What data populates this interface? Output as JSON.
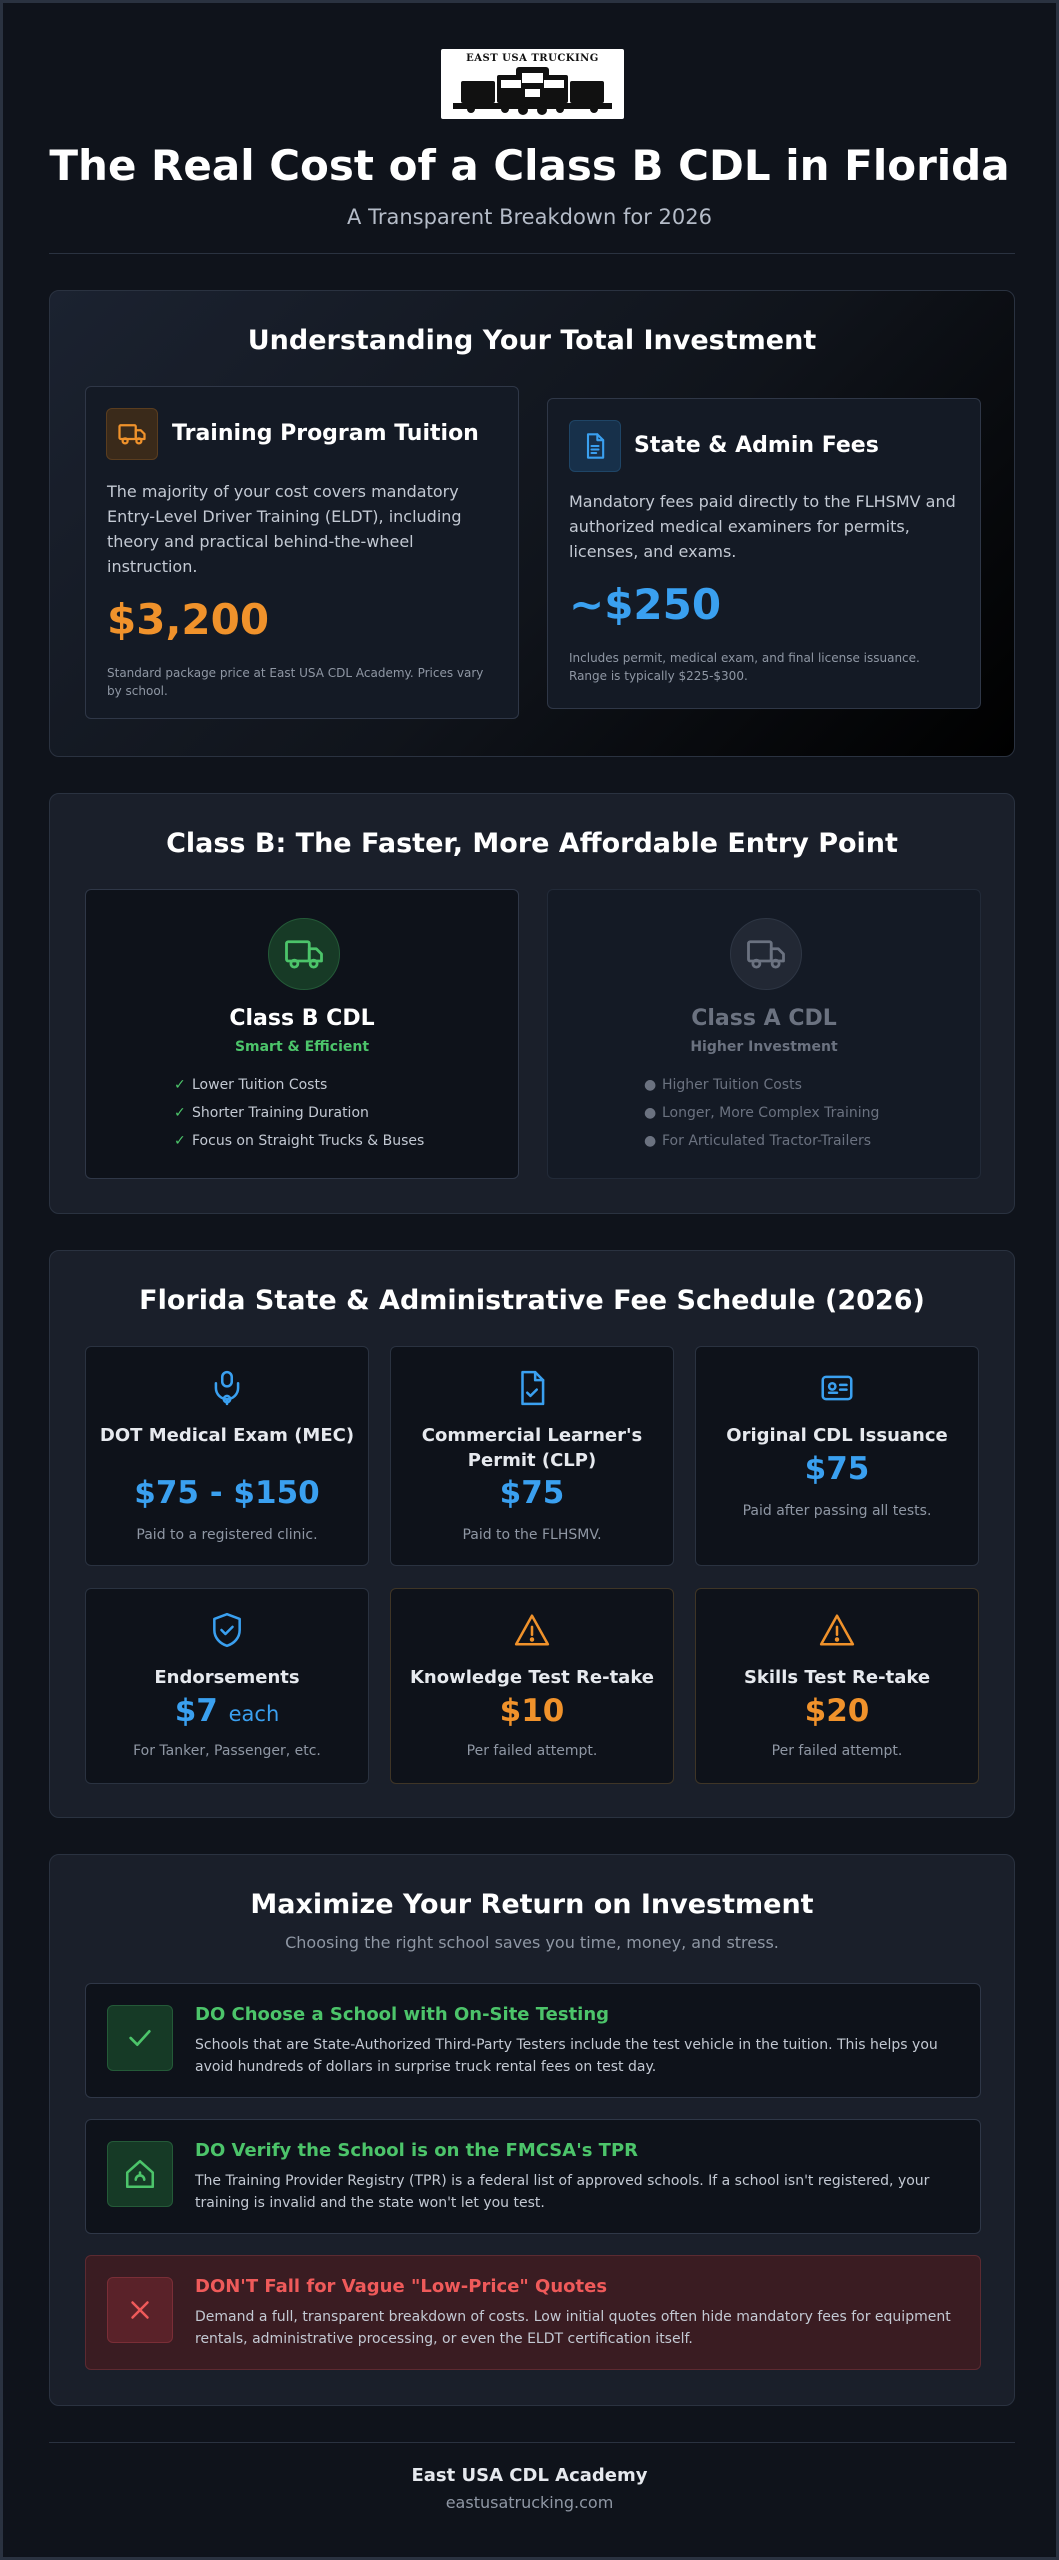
{
  "header": {
    "logo_text": "EAST USA TRUCKING",
    "title": "The Real Cost of a Class B CDL in Florida",
    "subtitle": "A Transparent Breakdown for 2026"
  },
  "investment": {
    "title": "Understanding Your Total Investment",
    "tuition": {
      "heading": "Training Program Tuition",
      "body": "The majority of your cost covers mandatory Entry-Level Driver Training (ELDT), including theory and practical behind-the-wheel instruction.",
      "price": "$3,200",
      "note": "Standard package price at East USA CDL Academy. Prices vary by school.",
      "icon": "truck-icon",
      "accent": "#f0922b"
    },
    "fees": {
      "heading": "State & Admin Fees",
      "body": "Mandatory fees paid directly to the FLHSMV and authorized medical examiners for permits, licenses, and exams.",
      "price": "~$250",
      "note": "Includes permit, medical exam, and final license issuance. Range is typically $225-$300.",
      "icon": "document-icon",
      "accent": "#3aa0f0"
    }
  },
  "comparison": {
    "title": "Class B: The Faster, More Affordable Entry Point",
    "class_b": {
      "name": "Class B CDL",
      "tag": "Smart & Efficient",
      "items": [
        "Lower Tuition Costs",
        "Shorter Training Duration",
        "Focus on Straight Trucks & Buses"
      ],
      "mark": "✓",
      "accent": "#4cc46a"
    },
    "class_a": {
      "name": "Class A CDL",
      "tag": "Higher Investment",
      "items": [
        "Higher Tuition Costs",
        "Longer, More Complex Training",
        "For Articulated Tractor-Trailers"
      ],
      "mark": "●",
      "accent": "#6b7280"
    }
  },
  "schedule": {
    "title": "Florida State & Administrative Fee Schedule (2026)",
    "fees": [
      {
        "name": "DOT Medical Exam (MEC)",
        "value": "$75 - $150",
        "unit": "",
        "note": "Paid to a registered clinic.",
        "icon": "stethoscope-icon",
        "color": "#3aa0f0"
      },
      {
        "name": "Commercial Learner's Permit (CLP)",
        "value": "$75",
        "unit": "",
        "note": "Paid to the FLHSMV.",
        "icon": "document-check-icon",
        "color": "#3aa0f0"
      },
      {
        "name": "Original CDL Issuance",
        "value": "$75",
        "unit": "",
        "note": "Paid after passing all tests.",
        "icon": "id-card-icon",
        "color": "#3aa0f0"
      },
      {
        "name": "Endorsements",
        "value": "$7",
        "unit": "each",
        "note": "For Tanker, Passenger, etc.",
        "icon": "shield-check-icon",
        "color": "#3aa0f0"
      },
      {
        "name": "Knowledge Test Re-take",
        "value": "$10",
        "unit": "",
        "note": "Per failed attempt.",
        "icon": "warning-icon",
        "color": "#f0922b"
      },
      {
        "name": "Skills Test Re-take",
        "value": "$20",
        "unit": "",
        "note": "Per failed attempt.",
        "icon": "warning-icon",
        "color": "#f0922b"
      }
    ]
  },
  "roi": {
    "title": "Maximize Your Return on Investment",
    "subtitle": "Choosing the right school saves you time, money, and stress.",
    "tips": [
      {
        "title": "DO Choose a School with On-Site Testing",
        "body": "Schools that are State-Authorized Third-Party Testers include the test vehicle in the tuition. This helps you avoid hundreds of dollars in surprise truck rental fees on test day.",
        "icon": "check-icon",
        "color": "#4cc46a"
      },
      {
        "title": "DO Verify the School is on the FMCSA's TPR",
        "body": "The Training Provider Registry (TPR) is a federal list of approved schools. If a school isn't registered, your training is invalid and the state won't let you test.",
        "icon": "home-shield-icon",
        "color": "#4cc46a"
      },
      {
        "title": "DON'T Fall for Vague \"Low-Price\" Quotes",
        "body": "Demand a full, transparent breakdown of costs. Low initial quotes often hide mandatory fees for equipment rentals, administrative processing, or even the ELDT certification itself.",
        "icon": "x-icon",
        "color": "#ef5a5a"
      }
    ]
  },
  "footer": {
    "name": "East USA CDL Academy",
    "url": "eastusatrucking.com"
  }
}
